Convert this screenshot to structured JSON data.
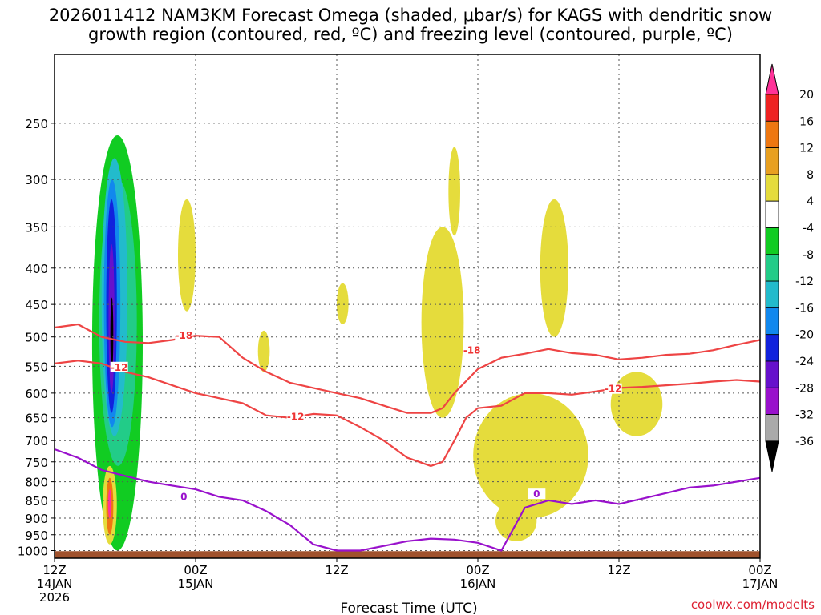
{
  "chart_data": {
    "type": "time-height",
    "title_lines": [
      "2026011412 NAM3KM Forecast Omega (shaded, μbar/s) for KAGS with dendritic snow",
      "growth region (contoured, red, ºC) and freezing level (contoured, purple, ºC)"
    ],
    "xlabel": "Forecast Time (UTC)",
    "ylabel": "",
    "x_ticks": [
      {
        "h": 0,
        "line1": "12Z",
        "line2": "14JAN",
        "line3": "2026"
      },
      {
        "h": 12,
        "line1": "00Z",
        "line2": "15JAN",
        "line3": ""
      },
      {
        "h": 24,
        "line1": "12Z",
        "line2": "",
        "line3": ""
      },
      {
        "h": 36,
        "line1": "00Z",
        "line2": "16JAN",
        "line3": ""
      },
      {
        "h": 48,
        "line1": "12Z",
        "line2": "",
        "line3": ""
      },
      {
        "h": 60,
        "line1": "00Z",
        "line2": "17JAN",
        "line3": ""
      }
    ],
    "x_range_hours": [
      0,
      60
    ],
    "y_ticks": [
      "250",
      "300",
      "350",
      "400",
      "450",
      "500",
      "550",
      "600",
      "650",
      "700",
      "750",
      "800",
      "850",
      "900",
      "950",
      "1000"
    ],
    "y_range_hpa": [
      200,
      1025
    ],
    "colorbar": {
      "labels": [
        "20",
        "16",
        "12",
        "8",
        "4",
        "-4",
        "-8",
        "-12",
        "-16",
        "-20",
        "-24",
        "-28",
        "-32",
        "-36"
      ],
      "colors": [
        "#ff3399",
        "#ee2222",
        "#ee7711",
        "#e8a020",
        "#e5dc3c",
        "#ffffff",
        "#11cc22",
        "#22cc88",
        "#22bbcc",
        "#1188ee",
        "#1122dd",
        "#6611cc",
        "#9911cc",
        "#aaaaaa",
        "#000000"
      ]
    },
    "contour_labels": {
      "dgz_upper": "-18",
      "dgz_lower": "-12",
      "freezing": "0"
    },
    "series": [
      {
        "name": "-18C isotherm",
        "color": "#ee4444",
        "hours": [
          0,
          2,
          4,
          6,
          8,
          10,
          12,
          14,
          16,
          18,
          20,
          22,
          24,
          26,
          28,
          30,
          32,
          33,
          34,
          36,
          38,
          40,
          42,
          44,
          46,
          48,
          50,
          52,
          54,
          56,
          58,
          60
        ],
        "hpa": [
          485,
          480,
          500,
          508,
          510,
          505,
          498,
          500,
          535,
          560,
          580,
          590,
          600,
          610,
          625,
          640,
          640,
          630,
          600,
          555,
          535,
          528,
          520,
          527,
          530,
          538,
          535,
          530,
          528,
          522,
          513,
          505
        ]
      },
      {
        "name": "-12C isotherm",
        "color": "#ee4444",
        "hours": [
          0,
          2,
          4,
          6,
          8,
          10,
          12,
          14,
          16,
          18,
          20,
          22,
          24,
          26,
          28,
          30,
          32,
          33,
          34,
          35,
          36,
          38,
          40,
          42,
          44,
          46,
          48,
          50,
          52,
          54,
          56,
          58,
          60
        ],
        "hpa": [
          545,
          540,
          545,
          560,
          570,
          585,
          600,
          610,
          620,
          645,
          650,
          642,
          645,
          670,
          700,
          740,
          760,
          750,
          700,
          650,
          630,
          625,
          600,
          600,
          603,
          597,
          590,
          588,
          585,
          582,
          578,
          575,
          578
        ]
      },
      {
        "name": "0C freezing level",
        "color": "#9911cc",
        "hours": [
          0,
          2,
          4,
          6,
          8,
          10,
          12,
          14,
          16,
          18,
          20,
          22,
          24,
          26,
          28,
          30,
          32,
          34,
          36,
          38,
          40,
          42,
          44,
          46,
          48,
          50,
          52,
          54,
          56,
          58,
          60
        ],
        "hpa": [
          720,
          740,
          770,
          785,
          800,
          810,
          820,
          840,
          850,
          880,
          920,
          980,
          1000,
          1000,
          985,
          970,
          962,
          965,
          975,
          1000,
          870,
          850,
          860,
          850,
          860,
          845,
          830,
          815,
          810,
          800,
          790
        ]
      }
    ],
    "omega_regions": [
      {
        "color": "#11cc22",
        "h0": 3.2,
        "h1": 7.5,
        "p_top": 260,
        "p_bot": 1000
      },
      {
        "color": "#22cc88",
        "h0": 3.8,
        "h1": 7.0,
        "p_top": 300,
        "p_bot": 760
      },
      {
        "color": "#22bbcc",
        "h0": 4.0,
        "h1": 6.2,
        "p_top": 280,
        "p_bot": 690
      },
      {
        "color": "#1188ee",
        "h0": 4.2,
        "h1": 5.6,
        "p_top": 300,
        "p_bot": 670
      },
      {
        "color": "#1122dd",
        "h0": 4.4,
        "h1": 5.3,
        "p_top": 320,
        "p_bot": 640
      },
      {
        "color": "#6611cc",
        "h0": 4.6,
        "h1": 5.1,
        "p_top": 370,
        "p_bot": 600
      },
      {
        "color": "#000000",
        "h0": 4.75,
        "h1": 5.0,
        "p_top": 440,
        "p_bot": 560
      },
      {
        "color": "#e5dc3c",
        "h0": 4.1,
        "h1": 5.3,
        "p_top": 760,
        "p_bot": 980
      },
      {
        "color": "#ee7711",
        "h0": 4.4,
        "h1": 5.0,
        "p_top": 790,
        "p_bot": 950
      },
      {
        "color": "#ff3399",
        "h0": 4.55,
        "h1": 4.85,
        "p_top": 820,
        "p_bot": 900
      },
      {
        "color": "#e5dc3c",
        "h0": 10.5,
        "h1": 12.0,
        "p_top": 320,
        "p_bot": 460
      },
      {
        "color": "#e5dc3c",
        "h0": 17.3,
        "h1": 18.3,
        "p_top": 490,
        "p_bot": 560
      },
      {
        "color": "#e5dc3c",
        "h0": 24.0,
        "h1": 25.0,
        "p_top": 420,
        "p_bot": 480
      },
      {
        "color": "#e5dc3c",
        "h0": 31.2,
        "h1": 34.8,
        "p_top": 350,
        "p_bot": 650
      },
      {
        "color": "#e5dc3c",
        "h0": 33.5,
        "h1": 34.5,
        "p_top": 270,
        "p_bot": 360
      },
      {
        "color": "#e5dc3c",
        "h0": 35.6,
        "h1": 45.4,
        "p_top": 600,
        "p_bot": 900
      },
      {
        "color": "#e5dc3c",
        "h0": 37.5,
        "h1": 41.0,
        "p_top": 850,
        "p_bot": 970
      },
      {
        "color": "#e5dc3c",
        "h0": 41.3,
        "h1": 43.7,
        "p_top": 320,
        "p_bot": 500
      },
      {
        "color": "#e5dc3c",
        "h0": 47.3,
        "h1": 51.7,
        "p_top": 560,
        "p_bot": 690
      }
    ],
    "terrain_color": "#a0522d"
  },
  "credit": "coolwx.com/modelts"
}
